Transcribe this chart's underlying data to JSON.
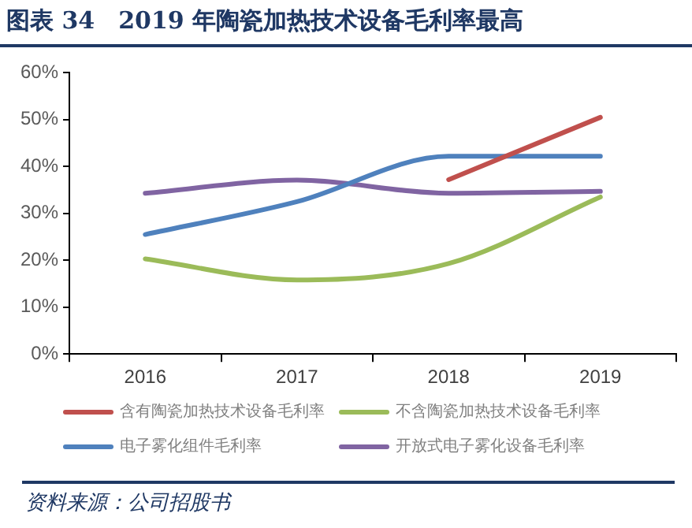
{
  "chart_data": {
    "type": "line",
    "title": "图表 34　2019 年陶瓷加热技术设备毛利率最高",
    "categories": [
      "2016",
      "2017",
      "2018",
      "2019"
    ],
    "series": [
      {
        "name": "含有陶瓷加热技术设备毛利率",
        "color": "#c0504d",
        "values": [
          null,
          null,
          37.2,
          50.5
        ]
      },
      {
        "name": "不含陶瓷加热技术设备毛利率",
        "color": "#9bbb59",
        "values": [
          20.3,
          15.8,
          19.3,
          33.5
        ]
      },
      {
        "name": "电子雾化组件毛利率",
        "color": "#4f81bd",
        "values": [
          25.5,
          32.5,
          42.2,
          42.2
        ]
      },
      {
        "name": "开放式电子雾化设备毛利率",
        "color": "#8064a2",
        "values": [
          34.3,
          37.1,
          34.3,
          34.7
        ]
      }
    ],
    "ylim": [
      0,
      60
    ],
    "yticks": [
      {
        "value": 0,
        "label": "0%"
      },
      {
        "value": 10,
        "label": "10%"
      },
      {
        "value": 20,
        "label": "20%"
      },
      {
        "value": 30,
        "label": "30%"
      },
      {
        "value": 40,
        "label": "40%"
      },
      {
        "value": 50,
        "label": "50%"
      },
      {
        "value": 60,
        "label": "60%"
      }
    ],
    "grid": false,
    "legend": "bottom",
    "marker": "none",
    "line_style": "solid",
    "annotations": [
      "资料来源：公司招股书"
    ]
  }
}
